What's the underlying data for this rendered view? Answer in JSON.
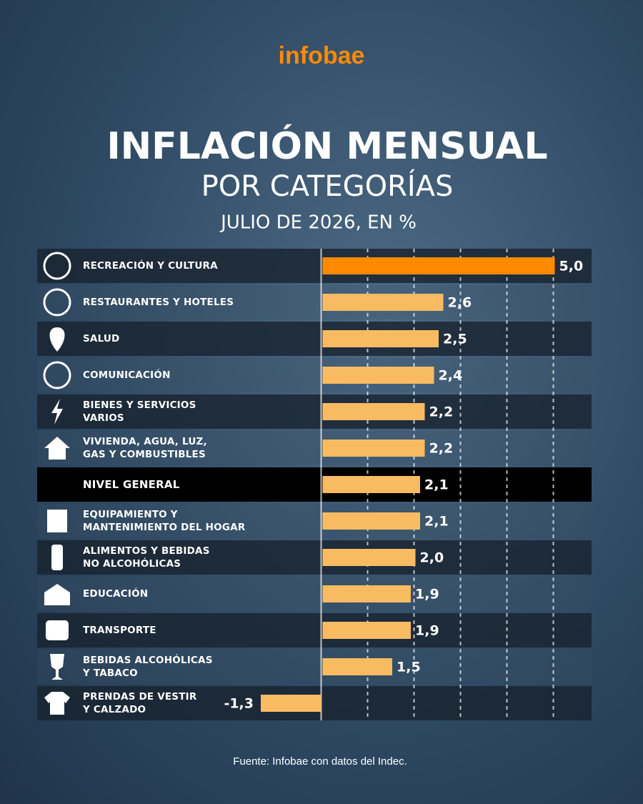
{
  "brand": "infobae",
  "chart_data": {
    "type": "bar",
    "orientation": "horizontal",
    "title": "INFLACIÓN MENSUAL",
    "subtitle": "POR CATEGORÍAS",
    "period": "JULIO DE 2026, EN %",
    "categories": [
      "RECREACIÓN Y CULTURA",
      "RESTAURANTES Y HOTELES",
      "SALUD",
      "COMUNICACIÓN",
      "BIENES Y SERVICIOS\nVARIOS",
      "VIVIENDA, AGUA, LUZ,\nGAS Y COMBUSTIBLES",
      "NIVEL GENERAL",
      "EQUIPAMIENTO Y\nMANTENIMIENTO DEL HOGAR",
      "ALIMENTOS Y BEBIDAS\nNO ALCOHÓLICAS",
      "EDUCACIÓN",
      "TRANSPORTE",
      "BEBIDAS ALCOHÓLICAS\nY TABACO",
      "PRENDAS DE VESTIR\nY CALZADO"
    ],
    "values": [
      5.0,
      2.6,
      2.5,
      2.4,
      2.2,
      2.2,
      2.1,
      2.1,
      2.0,
      1.9,
      1.9,
      1.5,
      -1.3
    ],
    "value_labels": [
      "5,0",
      "2,6",
      "2,5",
      "2,4",
      "2,2",
      "2,2",
      "2,1",
      "2,1",
      "2,0",
      "1,9",
      "1,9",
      "1,5",
      "-1,3"
    ],
    "colors": [
      "#ff8a00",
      "#f9bb62",
      "#f9bb62",
      "#f9bb62",
      "#f9bb62",
      "#f9bb62",
      "#f9bb62",
      "#f9bb62",
      "#f9bb62",
      "#f9bb62",
      "#f9bb62",
      "#f9bb62",
      "#f9bb62"
    ],
    "xlim": [
      -1.5,
      5.5
    ],
    "xticks": [
      0,
      1,
      2,
      3,
      4,
      5
    ],
    "grid": true,
    "source": "Fuente: Infobae con datos del Indec."
  }
}
